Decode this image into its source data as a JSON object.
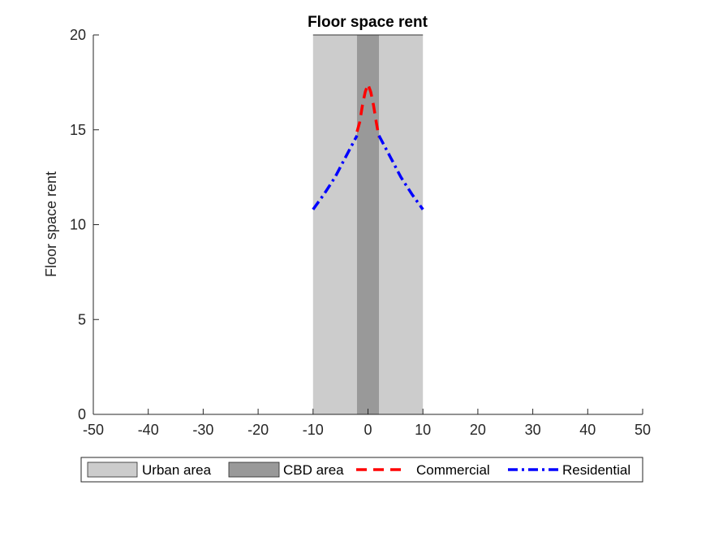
{
  "chart_data": {
    "type": "line",
    "title": "Floor space rent",
    "xlabel": "",
    "ylabel": "Floor space rent",
    "xlim": [
      -50,
      50
    ],
    "ylim": [
      0,
      20
    ],
    "xticks": [
      "-50",
      "-40",
      "-30",
      "-20",
      "-10",
      "0",
      "10",
      "20",
      "30",
      "40",
      "50"
    ],
    "yticks": [
      "0",
      "5",
      "10",
      "15",
      "20"
    ],
    "grid": false,
    "legend_position": "bottom",
    "regions": [
      {
        "name": "Urban area",
        "x": [
          -10,
          10
        ],
        "color": "#cccccc"
      },
      {
        "name": "CBD area",
        "x": [
          -2,
          2
        ],
        "color": "#999999"
      }
    ],
    "series": [
      {
        "name": "Commercial",
        "color": "#ff0000",
        "style": "dashed",
        "x": [
          -2,
          -1.5,
          -1,
          -0.5,
          0,
          0.5,
          1,
          1.5,
          2
        ],
        "values": [
          14.9,
          15.4,
          16.3,
          17.0,
          17.4,
          17.0,
          16.3,
          15.4,
          14.6
        ]
      },
      {
        "name": "Residential",
        "color": "#0000ff",
        "style": "dashdot",
        "x": [
          -10,
          -8,
          -6,
          -4,
          -2,
          2,
          4,
          6,
          8,
          10
        ],
        "values": [
          10.8,
          11.6,
          12.5,
          13.6,
          14.7,
          14.7,
          13.6,
          12.5,
          11.6,
          10.8
        ]
      }
    ]
  }
}
